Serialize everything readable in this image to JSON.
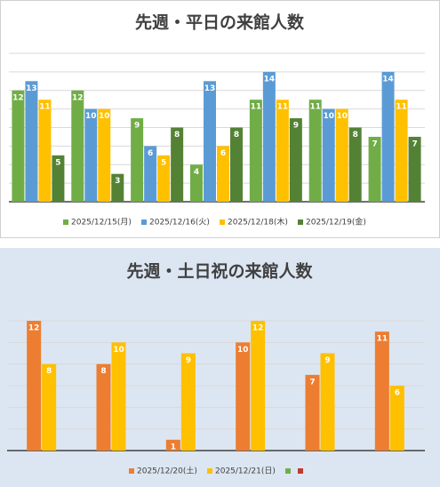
{
  "chart_data": [
    {
      "type": "bar",
      "title": "先週・平日の来館人数",
      "categories": [
        null,
        null,
        null,
        null,
        null,
        null,
        null
      ],
      "series": [
        {
          "name": "2025/12/15(月)",
          "color": "#70ad47",
          "values": [
            12,
            12,
            9,
            4,
            11,
            11,
            7
          ]
        },
        {
          "name": "2025/12/16(火)",
          "color": "#5b9bd5",
          "values": [
            13,
            10,
            6,
            13,
            14,
            10,
            14
          ]
        },
        {
          "name": "2025/12/18(木)",
          "color": "#ffc000",
          "values": [
            11,
            10,
            5,
            6,
            11,
            10,
            11
          ]
        },
        {
          "name": "2025/12/19(金)",
          "color": "#548235",
          "values": [
            5,
            3,
            8,
            8,
            9,
            8,
            7
          ]
        }
      ],
      "ylim": [
        0,
        16
      ],
      "yticks": [
        0,
        2,
        4,
        6,
        8,
        10,
        12,
        14,
        16
      ],
      "grid": true,
      "legend": "bottom"
    },
    {
      "type": "bar",
      "title": "先週・土日祝の来館人数",
      "categories": [
        null,
        null,
        null,
        null,
        null,
        null
      ],
      "series": [
        {
          "name": "2025/12/20(土)",
          "color": "#ed7d31",
          "values": [
            12,
            8,
            1,
            10,
            7,
            11
          ]
        },
        {
          "name": "2025/12/21(日)",
          "color": "#ffc000",
          "values": [
            8,
            10,
            9,
            12,
            9,
            6
          ]
        },
        {
          "name": null,
          "color": "#70ad47",
          "values": [
            null,
            null,
            null,
            null,
            null,
            null
          ]
        },
        {
          "name": null,
          "color": "#c0392b",
          "values": [
            null,
            null,
            null,
            null,
            null,
            null
          ]
        }
      ],
      "ylim": [
        0,
        12
      ],
      "yticks": [
        0,
        2,
        4,
        6,
        8,
        10,
        12
      ],
      "grid": true,
      "legend": "bottom"
    }
  ]
}
